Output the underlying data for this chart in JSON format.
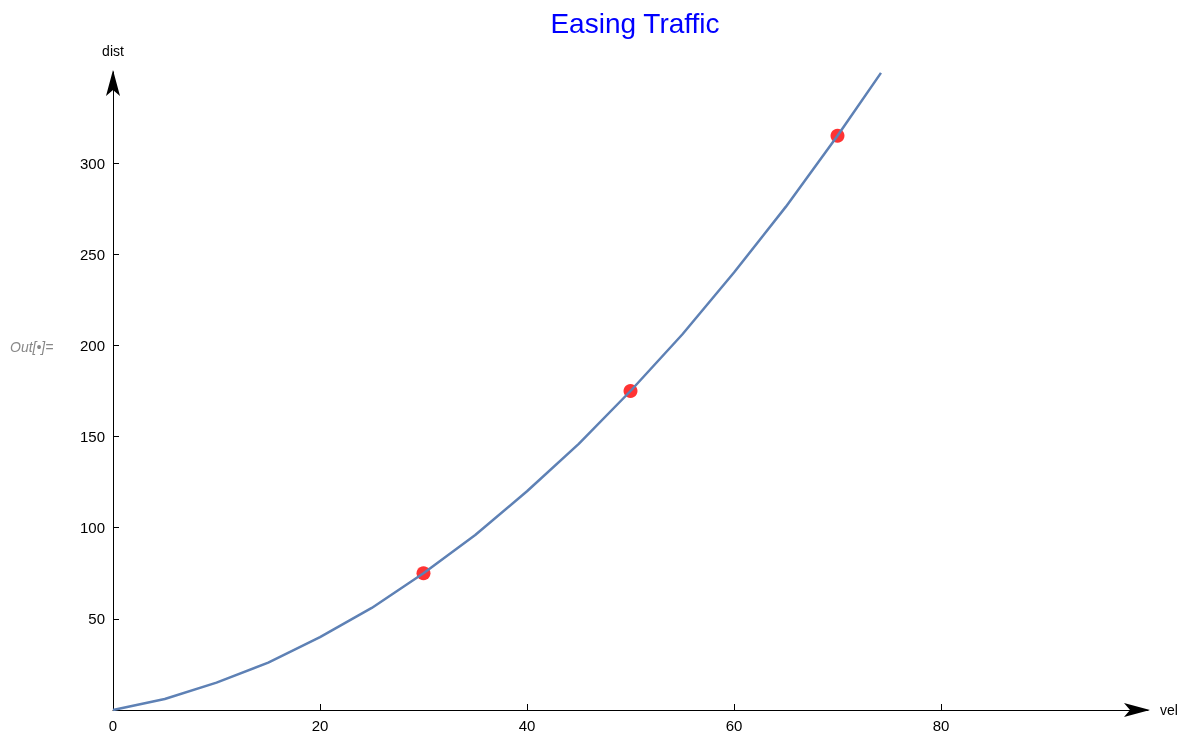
{
  "chart_data": {
    "type": "line",
    "title": "Easing Traffic",
    "xlabel": "vel",
    "ylabel": "dist",
    "xlim": [
      0,
      100
    ],
    "ylim": [
      0,
      350
    ],
    "xticks": [
      0,
      20,
      40,
      60,
      80
    ],
    "yticks": [
      50,
      100,
      150,
      200,
      250,
      300
    ],
    "grid": false,
    "annotations": [
      "Out[•]="
    ],
    "series": [
      {
        "type": "line",
        "color": "#5e81b5",
        "marker": "none",
        "x": [
          0,
          5,
          10,
          15,
          20,
          25,
          30,
          35,
          40,
          45,
          50,
          55,
          60,
          65,
          70,
          74.2
        ],
        "values": [
          0,
          6,
          15,
          26,
          40,
          56,
          75,
          96,
          120,
          146,
          175,
          206,
          240,
          276,
          315,
          349.5
        ]
      },
      {
        "type": "scatter",
        "color": "#ff0000",
        "marker": "circle",
        "x": [
          30,
          50,
          70
        ],
        "values": [
          75,
          175,
          315
        ]
      }
    ]
  }
}
